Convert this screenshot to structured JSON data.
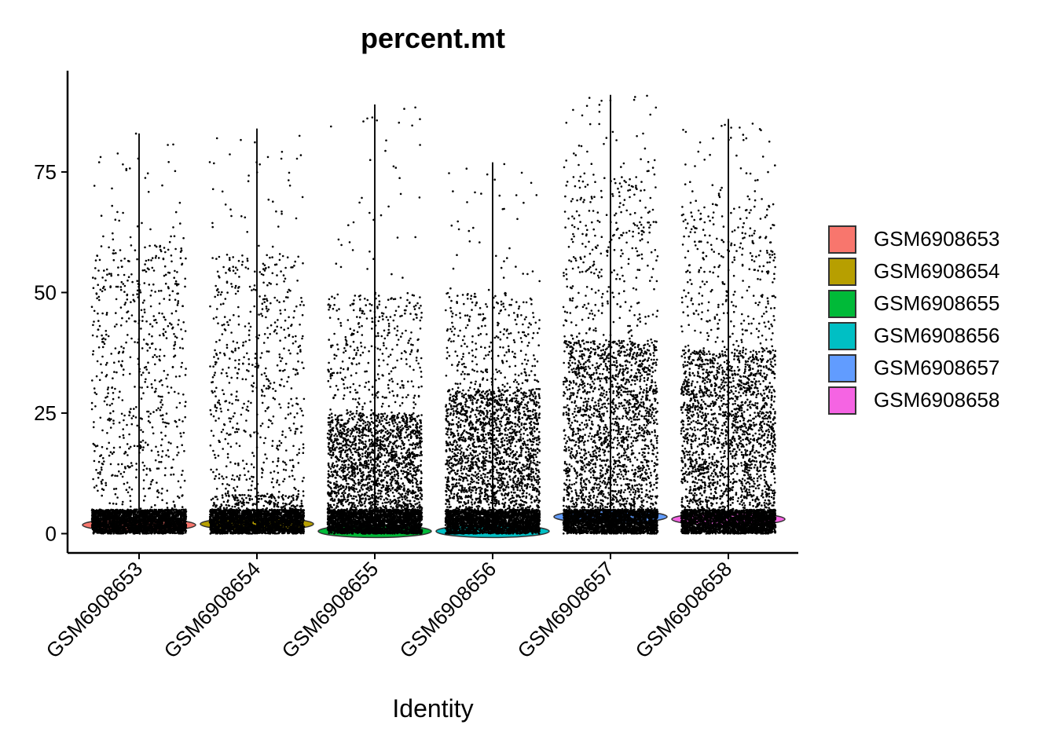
{
  "chart_data": {
    "type": "violin",
    "title": "percent.mt",
    "xlabel": "Identity",
    "ylabel": "",
    "ylim": [
      -4,
      96
    ],
    "yticks": [
      0,
      25,
      50,
      75
    ],
    "grid": false,
    "legend": "right",
    "categories": [
      "GSM6908653",
      "GSM6908654",
      "GSM6908655",
      "GSM6908656",
      "GSM6908657",
      "GSM6908658"
    ],
    "series": [
      {
        "name": "GSM6908653",
        "color": "#F8766D",
        "median": 1.8,
        "max": 83,
        "dense_upper": 5,
        "spread_upper": 60
      },
      {
        "name": "GSM6908654",
        "color": "#B79F00",
        "median": 2.0,
        "max": 84,
        "dense_upper": 8,
        "spread_upper": 58
      },
      {
        "name": "GSM6908655",
        "color": "#00BA38",
        "median": 0.5,
        "max": 89,
        "dense_upper": 25,
        "spread_upper": 50
      },
      {
        "name": "GSM6908656",
        "color": "#00BFC4",
        "median": 0.5,
        "max": 77,
        "dense_upper": 30,
        "spread_upper": 50
      },
      {
        "name": "GSM6908657",
        "color": "#619CFF",
        "median": 3.5,
        "max": 91,
        "dense_upper": 40,
        "spread_upper": 75
      },
      {
        "name": "GSM6908658",
        "color": "#F564E3",
        "median": 3.0,
        "max": 86,
        "dense_upper": 38,
        "spread_upper": 70
      }
    ]
  }
}
